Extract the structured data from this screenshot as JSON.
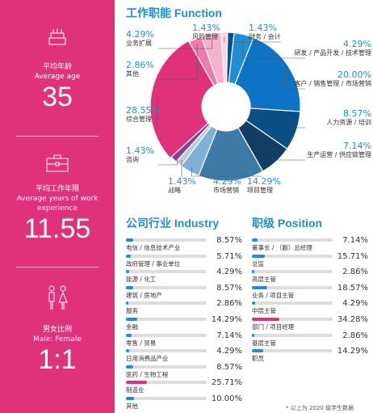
{
  "left_panel": {
    "bg_color": "#e0327a",
    "stats": [
      {
        "icon": "cake-icon",
        "label_zh": "平均年龄",
        "label_en": "Average age",
        "value": "35"
      },
      {
        "icon": "briefcase-icon",
        "label_zh": "平均工作年限",
        "label_en": "Average years of work experience",
        "value": "11.55"
      },
      {
        "icon": "male-female-icon",
        "label_zh": "男女比例",
        "label_en": "Male: Female",
        "value": "1:1"
      }
    ]
  },
  "function_chart": {
    "title_zh": "工作职能",
    "title_en": "Function",
    "chart_data": {
      "type": "pie",
      "style": "donut",
      "slices": [
        {
          "label": "财务 / 会计",
          "value": 1.43,
          "pct": "1.43%",
          "color": "#0a4f86"
        },
        {
          "label": "研发 / 产品开发 / 技术管理",
          "value": 4.29,
          "pct": "4.29%",
          "color": "#1e8fd6"
        },
        {
          "label": "客户 / 销售管理 / 市场营销",
          "value": 20.0,
          "pct": "20.00%",
          "color": "#0b74c4"
        },
        {
          "label": "人力资源 / 培训",
          "value": 8.57,
          "pct": "8.57%",
          "color": "#0a4f86"
        },
        {
          "label": "生产运营 / 供应链管理",
          "value": 7.14,
          "pct": "7.14%",
          "color": "#123e63"
        },
        {
          "label": "项目管理",
          "value": 14.29,
          "pct": "14.29%",
          "color": "#3e7aa6"
        },
        {
          "label": "市场营销",
          "value": 4.29,
          "pct": "4.29%",
          "color": "#7fb0d6"
        },
        {
          "label": "战略",
          "value": 1.43,
          "pct": "1.43%",
          "color": "#b9ccdd"
        },
        {
          "label": "咨询",
          "value": 1.43,
          "pct": "1.43%",
          "color": "#8c3d8f"
        },
        {
          "label": "综合管理",
          "value": 28.55,
          "pct": "28.55%",
          "color": "#e0327a"
        },
        {
          "label": "其他",
          "value": 2.86,
          "pct": "2.86%",
          "color": "#f07aab"
        },
        {
          "label": "业务扩展",
          "value": 4.29,
          "pct": "4.29%",
          "color": "#f6b1cd"
        },
        {
          "label": "风险管理",
          "value": 1.43,
          "pct": "1.43%",
          "color": "#fbd3e3"
        }
      ]
    }
  },
  "industry_chart": {
    "title_zh": "公司行业",
    "title_en": "Industry",
    "chart_data": {
      "type": "bar",
      "orientation": "horizontal",
      "xlim": [
        0,
        100
      ],
      "categories": [
        "电信 / 信息技术产业",
        "政府管理 / 事业单位",
        "能源 / 化工",
        "建筑 / 房地产",
        "服务",
        "金融",
        "零售 / 贸易",
        "日用消费品产业",
        "医药 / 生物工程",
        "制造业",
        "其他"
      ],
      "values": [
        8.57,
        5.71,
        4.29,
        8.57,
        2.86,
        14.29,
        7.14,
        4.29,
        8.57,
        25.71,
        10.0
      ],
      "labels": [
        "8.57%",
        "5.71%",
        "4.29%",
        "8.57%",
        "2.86%",
        "14.29%",
        "7.14%",
        "4.29%",
        "8.57%",
        "25.71%",
        "10.00%"
      ],
      "highlight_index": 9,
      "colors": {
        "normal": "#1e8fd6",
        "highlight": "#e0327a",
        "track": "#dddddd"
      }
    }
  },
  "position_chart": {
    "title_zh": "职级",
    "title_en": "Position",
    "chart_data": {
      "type": "bar",
      "orientation": "horizontal",
      "xlim": [
        0,
        100
      ],
      "categories": [
        "董事长 / （副）总经理",
        "总监",
        "高层主管",
        "业务 / 项目主管",
        "中层主管",
        "部门 / 项目经理",
        "基层主管",
        "职员"
      ],
      "values": [
        7.14,
        15.71,
        2.86,
        18.57,
        4.29,
        34.28,
        2.86,
        14.29
      ],
      "labels": [
        "7.14%",
        "15.71%",
        "2.86%",
        "18.57%",
        "4.29%",
        "34.28%",
        "2.86%",
        "14.29%"
      ],
      "highlight_index": 5,
      "colors": {
        "normal": "#1e8fd6",
        "highlight": "#e0327a",
        "track": "#dddddd"
      }
    }
  },
  "footnote": "* 以上为 2020 级学生数据"
}
